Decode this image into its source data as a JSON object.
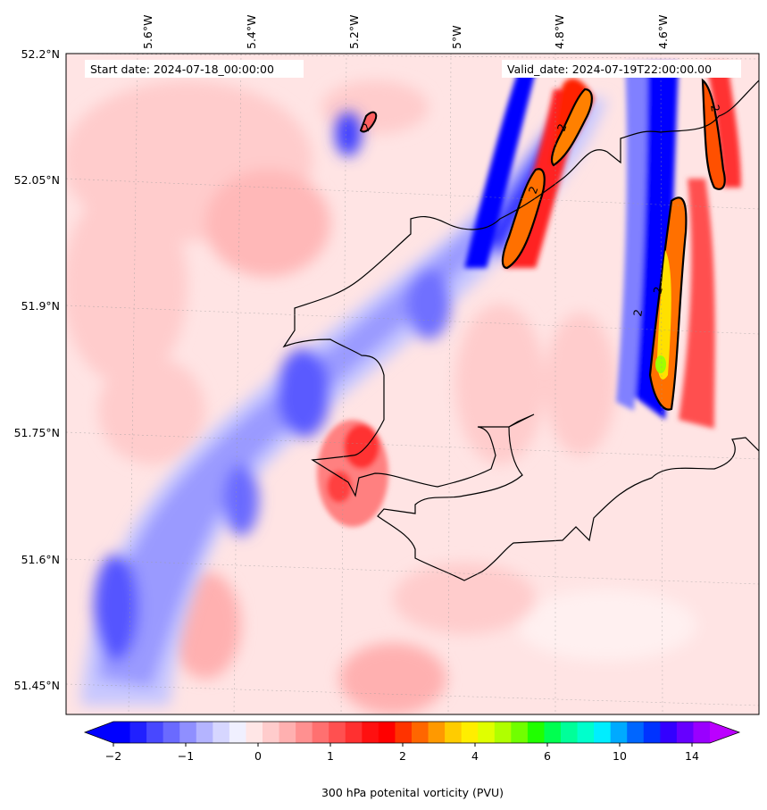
{
  "header": {
    "start_date": "Start date: 2024-07-18_00:00:00",
    "valid_date": "Valid_date: 2024-07-19T22:00:00.00"
  },
  "axes": {
    "lon_labels": [
      "5.6°W",
      "5.4°W",
      "5.2°W",
      "5°W",
      "4.8°W",
      "4.6°W"
    ],
    "lat_labels": [
      "52.2°N",
      "52.05°N",
      "51.9°N",
      "51.75°N",
      "51.6°N",
      "51.45°N"
    ],
    "gridlines": true
  },
  "contour_labels": [
    "2",
    "2",
    "2",
    "2",
    "2",
    "2"
  ],
  "colorbar": {
    "label": "300 hPa potenital vorticity (PVU)",
    "tick_labels": [
      "−2",
      "−1",
      "0",
      "1",
      "2",
      "4",
      "6",
      "10",
      "14"
    ],
    "colors": [
      "#0000ff",
      "#2020ff",
      "#4848ff",
      "#6a6aff",
      "#8f8fff",
      "#b4b4ff",
      "#d6d6ff",
      "#f0f0ff",
      "#ffe6e6",
      "#ffcccc",
      "#ffb0b0",
      "#ff9090",
      "#ff7070",
      "#ff5050",
      "#ff3030",
      "#ff1010",
      "#ff0000",
      "#ff3300",
      "#ff6600",
      "#ff9900",
      "#ffcc00",
      "#ffee00",
      "#e0ff00",
      "#b0ff00",
      "#70ff00",
      "#20ff00",
      "#00ff50",
      "#00ff99",
      "#00ffcc",
      "#00eeff",
      "#00aaff",
      "#0066ff",
      "#0033ff",
      "#3300ff",
      "#6600ff",
      "#9900ff"
    ],
    "extend_low_color": "#0000ff",
    "extend_high_color": "#bb00ff"
  }
}
